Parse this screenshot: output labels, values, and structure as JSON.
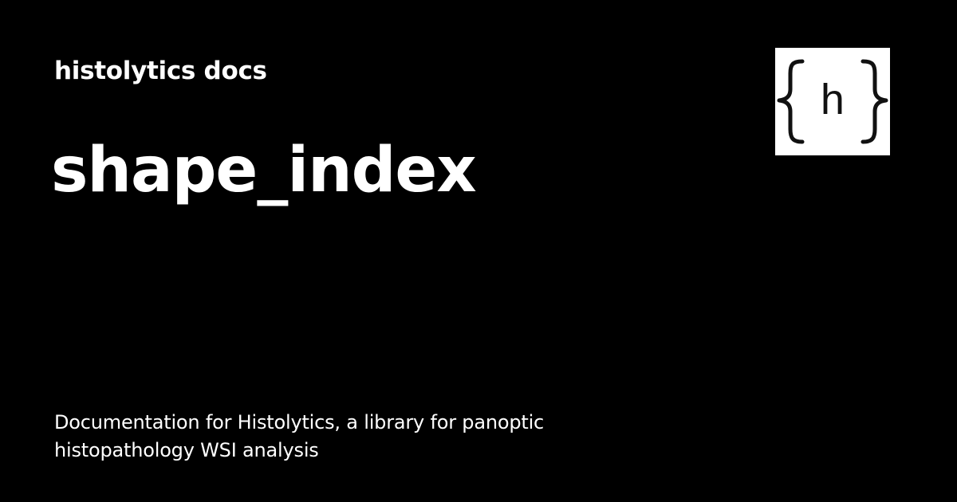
{
  "site": {
    "name": "histolytics docs"
  },
  "page": {
    "title": "shape_index",
    "description": "Documentation for Histolytics, a library for panoptic histopathology WSI analysis"
  },
  "logo": {
    "icon": "curly-braces-h-logo",
    "letter": "h",
    "background": "#ffffff",
    "foreground": "#111111"
  },
  "colors": {
    "background": "#000000",
    "text": "#ffffff"
  }
}
